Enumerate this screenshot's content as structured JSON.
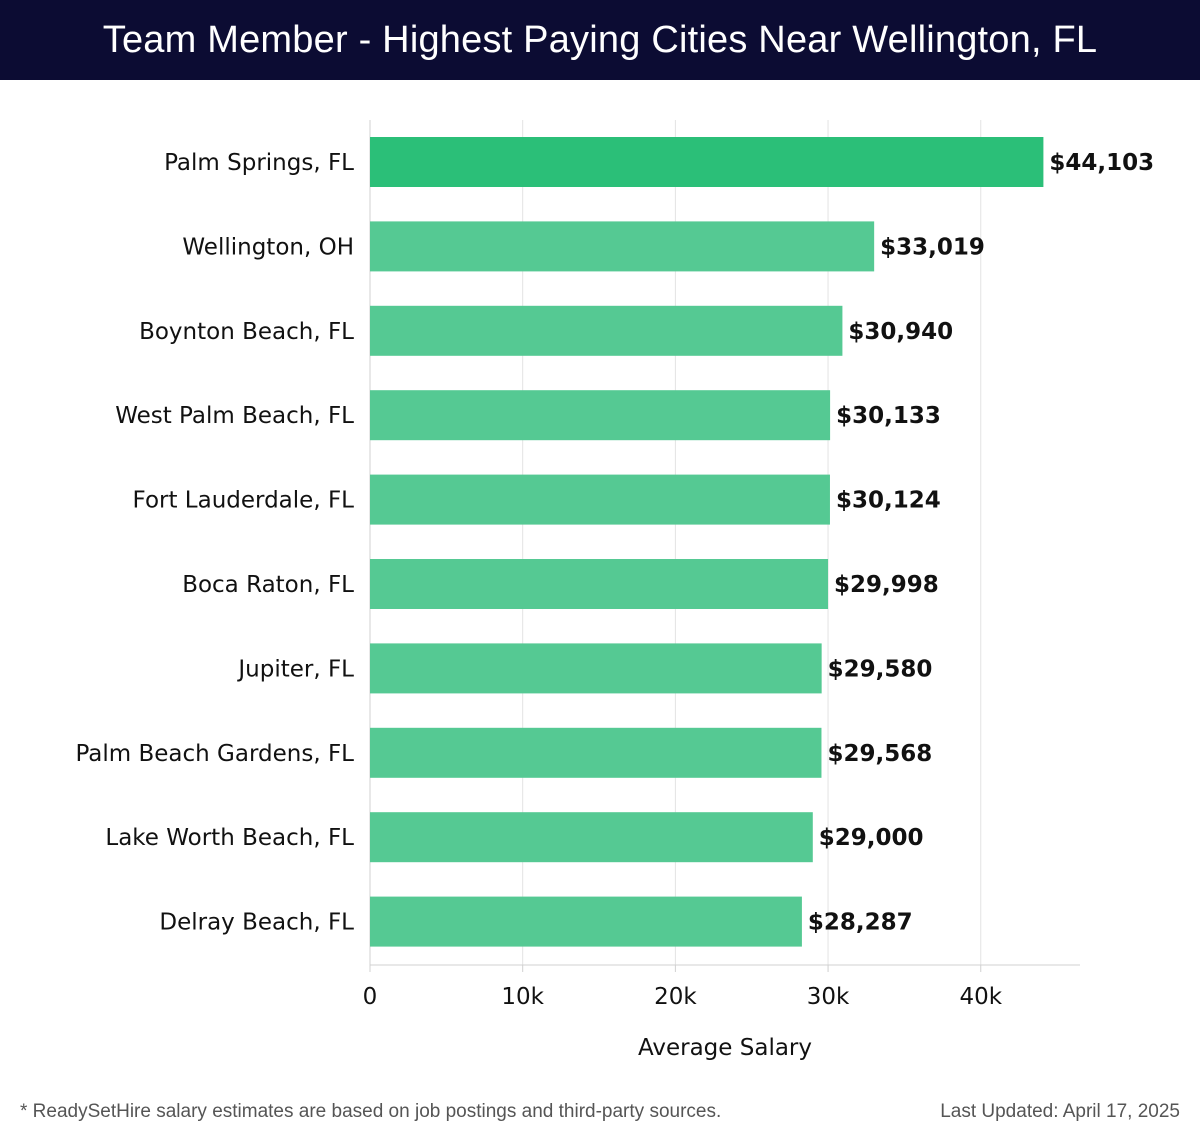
{
  "header": {
    "title": "Team Member - Highest Paying Cities Near Wellington, FL"
  },
  "chart_data": {
    "type": "bar",
    "orientation": "horizontal",
    "title": "Team Member - Highest Paying Cities Near Wellington, FL",
    "xlabel": "Average Salary",
    "ylabel": "",
    "xlim": [
      0,
      46500
    ],
    "xticks": [
      0,
      10000,
      20000,
      30000,
      40000
    ],
    "xtick_labels": [
      "0",
      "10k",
      "20k",
      "30k",
      "40k"
    ],
    "grid": "vertical",
    "categories": [
      "Palm Springs, FL",
      "Wellington, OH",
      "Boynton Beach, FL",
      "West Palm Beach, FL",
      "Fort Lauderdale, FL",
      "Boca Raton, FL",
      "Jupiter, FL",
      "Palm Beach Gardens, FL",
      "Lake Worth Beach, FL",
      "Delray Beach, FL"
    ],
    "values": [
      44103,
      33019,
      30940,
      30133,
      30124,
      29998,
      29580,
      29568,
      29000,
      28287
    ],
    "value_labels": [
      "$44,103",
      "$33,019",
      "$30,940",
      "$30,133",
      "$30,124",
      "$29,998",
      "$29,580",
      "$29,568",
      "$29,000",
      "$28,287"
    ],
    "colors": {
      "highlight": "#2bbf78",
      "bar": "#55c993",
      "grid": "#e3e3e3",
      "axis": "#d0d0d0"
    }
  },
  "footer": {
    "note": "* ReadySetHire salary estimates are based on job postings and third-party sources.",
    "updated": "Last Updated: April 17, 2025"
  }
}
